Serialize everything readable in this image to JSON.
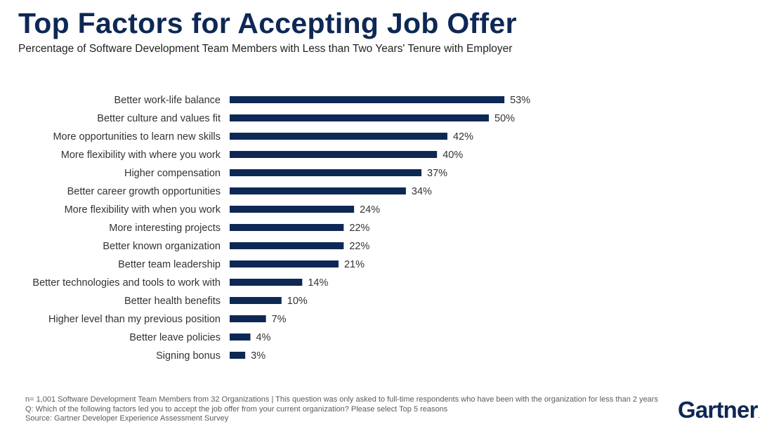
{
  "title": "Top Factors for Accepting Job Offer",
  "subtitle": "Percentage of Software Development Team Members with Less than Two Years' Tenure with Employer",
  "chart_data": {
    "type": "bar",
    "orientation": "horizontal",
    "categories": [
      "Better work-life balance",
      "Better culture and values fit",
      "More opportunities to learn new skills",
      "More flexibility with where you work",
      "Higher compensation",
      "Better career growth opportunities",
      "More flexibility with when you work",
      "More interesting projects",
      "Better known organization",
      "Better team leadership",
      "Better technologies and tools to work with",
      "Better health benefits",
      "Higher level than my previous position",
      "Better leave policies",
      "Signing bonus"
    ],
    "values": [
      53,
      50,
      42,
      40,
      37,
      34,
      24,
      22,
      22,
      21,
      14,
      10,
      7,
      4,
      3
    ],
    "value_labels": [
      "53%",
      "50%",
      "42%",
      "40%",
      "37%",
      "34%",
      "24%",
      "22%",
      "22%",
      "21%",
      "14%",
      "10%",
      "7%",
      "4%",
      "3%"
    ],
    "bar_color": "#0e2855",
    "xlim": [
      0,
      60
    ],
    "grid": false,
    "legend": "none"
  },
  "footer": {
    "line1": "n= 1,001 Software Development Team Members from 32 Organizations | This question was only asked to full-time respondents who have been with the organization for less than 2 years",
    "line2": "Q: Which of the following factors led you to accept the job offer from your current organization? Please select Top 5 reasons",
    "line3": "Source: Gartner Developer Experience Assessment Survey"
  },
  "logo": {
    "text": "Gartner",
    "mark": "."
  }
}
